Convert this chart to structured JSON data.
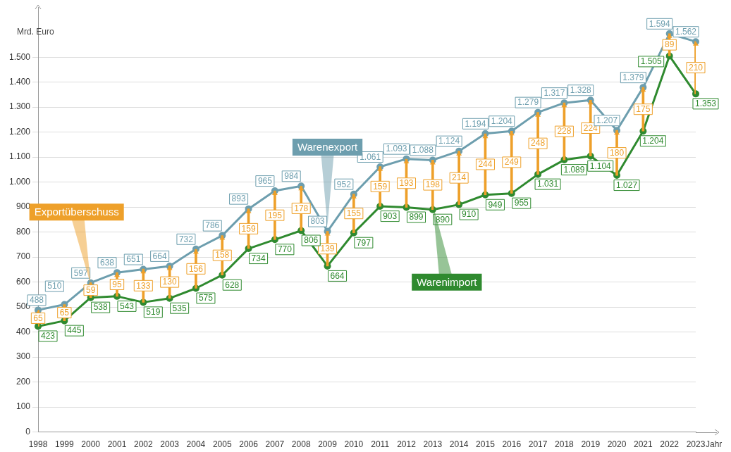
{
  "chart_data": {
    "type": "line",
    "ylabel": "Mrd. Euro",
    "xlabel": "Jahr",
    "categories": [
      "1998",
      "1999",
      "2000",
      "2001",
      "2002",
      "2003",
      "2004",
      "2005",
      "2006",
      "2007",
      "2008",
      "2009",
      "2010",
      "2011",
      "2012",
      "2013",
      "2014",
      "2015",
      "2016",
      "2017",
      "2018",
      "2019",
      "2020",
      "2021",
      "2022",
      "2023"
    ],
    "ylim": [
      0,
      1700
    ],
    "yticks": [
      0,
      100,
      200,
      300,
      400,
      500,
      600,
      700,
      800,
      900,
      {
        "value": 1000,
        "label": "1.000"
      },
      {
        "value": 1100,
        "label": "1.100"
      },
      {
        "value": 1200,
        "label": "1.200"
      },
      {
        "value": 1300,
        "label": "1.300"
      },
      {
        "value": 1400,
        "label": "1.400"
      },
      {
        "value": 1500,
        "label": "1.500"
      }
    ],
    "grid": "y",
    "legend": false,
    "marker": "circle",
    "series": [
      {
        "name": "Exportüberschuss",
        "type": "bar",
        "color": "#eea02a",
        "base": [
          423,
          445,
          538,
          543,
          519,
          535,
          575,
          628,
          734,
          770,
          806,
          664,
          797,
          903,
          899,
          890,
          910,
          949,
          955,
          1031,
          1089,
          1104,
          1027,
          1204,
          1505,
          1353
        ],
        "values": [
          65,
          65,
          59,
          95,
          133,
          130,
          156,
          158,
          159,
          195,
          178,
          139,
          155,
          159,
          193,
          198,
          214,
          244,
          249,
          248,
          228,
          224,
          180,
          175,
          89,
          210
        ],
        "value_labels": [
          "65",
          "65",
          "59",
          "95",
          "133",
          "130",
          "156",
          "158",
          "159",
          "195",
          "178",
          "139",
          "155",
          "159",
          "193",
          "198",
          "214",
          "244",
          "249",
          "248",
          "228",
          "224",
          "180",
          "175",
          "89",
          "210"
        ]
      },
      {
        "name": "Warenexport",
        "color": "#6d9eae",
        "values": [
          488,
          510,
          597,
          638,
          651,
          664,
          732,
          786,
          893,
          965,
          984,
          803,
          952,
          1061,
          1093,
          1088,
          1124,
          1194,
          1204,
          1279,
          1317,
          1328,
          1207,
          1379,
          1594,
          1562
        ],
        "value_labels": [
          "488",
          "510",
          "597",
          "638",
          "651",
          "664",
          "732",
          "786",
          "893",
          "965",
          "984",
          "803",
          "952",
          "1.061",
          "1.093",
          "1.088",
          "1.124",
          "1.194",
          "1.204",
          "1.279",
          "1.317",
          "1.328",
          "1.207",
          "1.379",
          "1.594",
          "1.562"
        ]
      },
      {
        "name": "Warenimport",
        "color": "#2f8a2f",
        "values": [
          423,
          445,
          538,
          543,
          519,
          535,
          575,
          628,
          734,
          770,
          806,
          664,
          797,
          903,
          899,
          890,
          910,
          949,
          955,
          1031,
          1089,
          1104,
          1027,
          1204,
          1505,
          1353
        ],
        "value_labels": [
          "423",
          "445",
          "538",
          "543",
          "519",
          "535",
          "575",
          "628",
          "734",
          "770",
          "806",
          "664",
          "797",
          "903",
          "899",
          "890",
          "910",
          "949",
          "955",
          "1.031",
          "1.089",
          "1.104",
          "1.027",
          "1.204",
          "1.505",
          "1.353"
        ]
      }
    ]
  }
}
